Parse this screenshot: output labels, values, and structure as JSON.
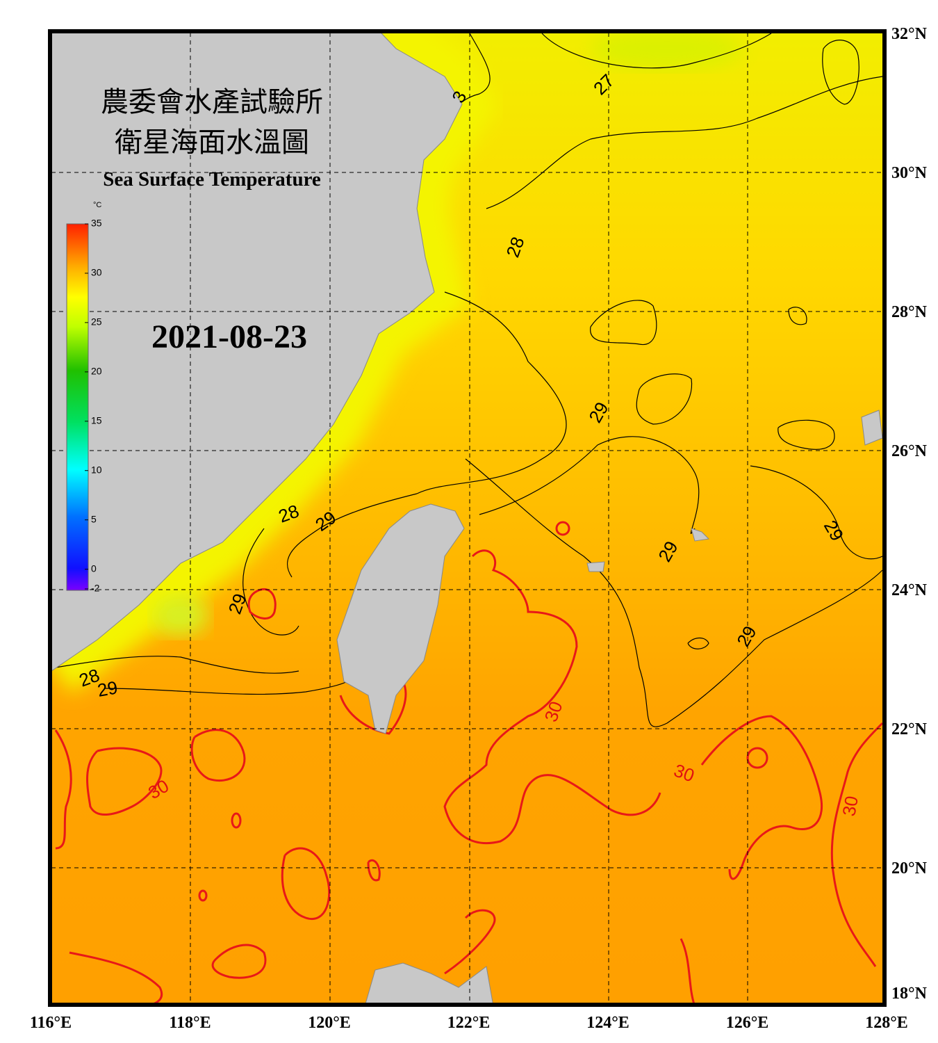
{
  "header": {
    "title_line1": "農委會水產試驗所",
    "title_line2": "衛星海面水溫圖",
    "title_en": "Sea Surface Temperature"
  },
  "date": "2021-08-23",
  "colorbar": {
    "unit": "°C",
    "ticks": [
      35,
      30,
      25,
      20,
      15,
      10,
      5,
      0,
      -2
    ]
  },
  "lat_labels": [
    "32°N",
    "30°N",
    "28°N",
    "26°N",
    "24°N",
    "22°N",
    "20°N",
    "18°N"
  ],
  "lon_labels": [
    "116°E",
    "118°E",
    "120°E",
    "122°E",
    "124°E",
    "126°E",
    "128°E"
  ],
  "contour_labels": [
    3,
    27,
    28,
    29,
    28,
    29,
    29,
    28,
    29,
    29,
    29,
    29,
    30,
    30,
    30,
    30
  ]
}
